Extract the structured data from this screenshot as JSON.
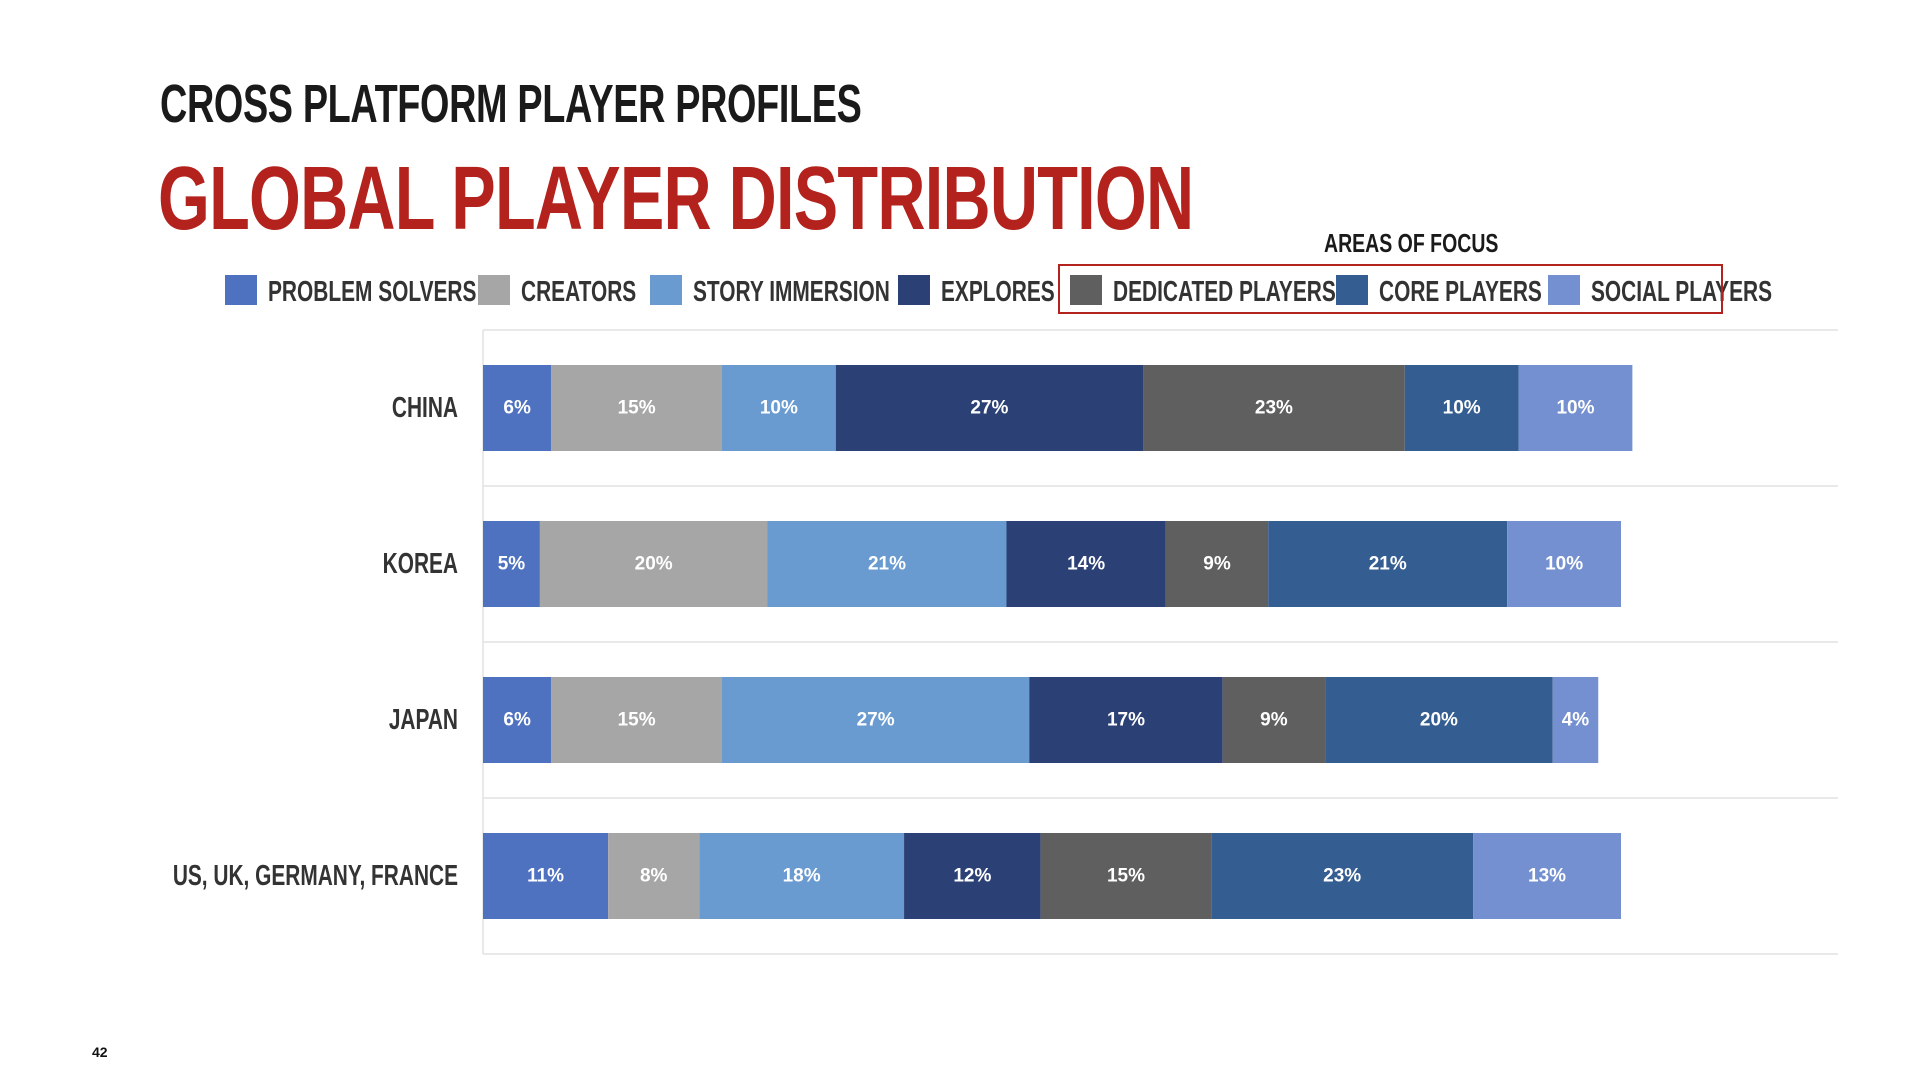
{
  "slide": {
    "supertitle": "CROSS PLATFORM PLAYER PROFILES",
    "title": "GLOBAL PLAYER DISTRIBUTION",
    "areas_of_focus_label": "AREAS OF FOCUS",
    "page_number": "42",
    "title_color": "#b3221c"
  },
  "chart_data": {
    "type": "bar",
    "orientation": "horizontal",
    "stacked": true,
    "categories": [
      "CHINA",
      "KOREA",
      "JAPAN",
      "US, UK, GERMANY, FRANCE"
    ],
    "series": [
      {
        "name": "PROBLEM SOLVERS",
        "color": "#4f72c0",
        "values": [
          6,
          5,
          6,
          11
        ],
        "labels": [
          "6%",
          "5%",
          "6%",
          "11%"
        ]
      },
      {
        "name": "CREATORS",
        "color": "#a6a6a6",
        "values": [
          15,
          20,
          15,
          8
        ],
        "labels": [
          "15%",
          "20%",
          "15%",
          "8%"
        ]
      },
      {
        "name": "STORY IMMERSION",
        "color": "#6a9bd0",
        "values": [
          10,
          21,
          27,
          18
        ],
        "labels": [
          "10%",
          "21%",
          "27%",
          "18%"
        ]
      },
      {
        "name": "EXPLORES",
        "color": "#2b4075",
        "values": [
          27,
          14,
          17,
          12
        ],
        "labels": [
          "27%",
          "14%",
          "17%",
          "12%"
        ]
      },
      {
        "name": "DEDICATED PLAYERS",
        "color": "#5f5f5f",
        "values": [
          23,
          9,
          9,
          15
        ],
        "labels": [
          "23%",
          "9%",
          "9%",
          "15%"
        ]
      },
      {
        "name": "CORE PLAYERS",
        "color": "#345d91",
        "values": [
          10,
          21,
          20,
          23
        ],
        "labels": [
          "10%",
          "21%",
          "20%",
          "23%"
        ]
      },
      {
        "name": "SOCIAL PLAYERS",
        "color": "#7590d0",
        "values": [
          10,
          10,
          4,
          13
        ],
        "labels": [
          "10%",
          "10%",
          "4%",
          "13%"
        ]
      }
    ],
    "legend_position": "top",
    "grid": true
  }
}
